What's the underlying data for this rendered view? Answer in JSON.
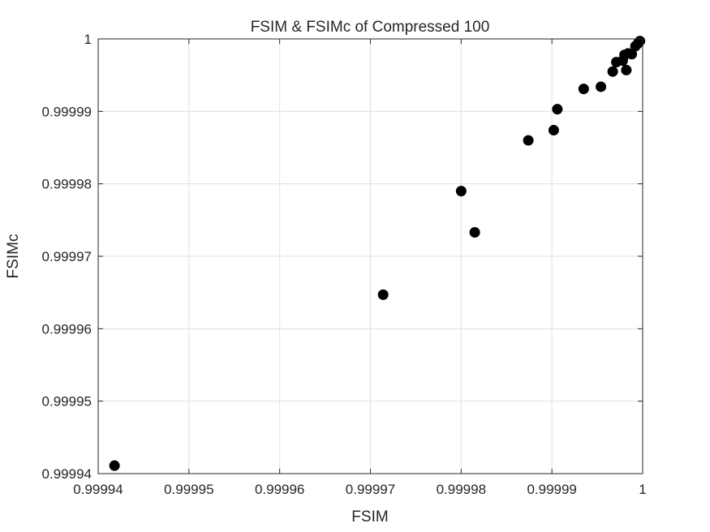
{
  "chart_data": {
    "type": "scatter",
    "title": "FSIM & FSIMc of Compressed 100",
    "xlabel": "FSIM",
    "ylabel": "FSIMc",
    "xlim": [
      0.99994,
      1
    ],
    "ylim": [
      0.99994,
      1
    ],
    "xticks": [
      0.99994,
      0.99995,
      0.99996,
      0.99997,
      0.99998,
      0.99999,
      1
    ],
    "yticks": [
      0.99994,
      0.99995,
      0.99996,
      0.99997,
      0.99998,
      0.99999,
      1
    ],
    "xtick_labels": [
      "0.99994",
      "0.99995",
      "0.99996",
      "0.99997",
      "0.99998",
      "0.99999",
      "1"
    ],
    "ytick_labels": [
      "0.99994",
      "0.99995",
      "0.99996",
      "0.99997",
      "0.99998",
      "0.99999",
      "1"
    ],
    "grid": true,
    "marker_color": "#000000",
    "points": [
      {
        "x": 0.9999418,
        "y": 0.9999411
      },
      {
        "x": 0.9999714,
        "y": 0.9999647
      },
      {
        "x": 0.99998,
        "y": 0.999979
      },
      {
        "x": 0.9999815,
        "y": 0.9999733
      },
      {
        "x": 0.9999874,
        "y": 0.999986
      },
      {
        "x": 0.9999902,
        "y": 0.9999874
      },
      {
        "x": 0.9999906,
        "y": 0.9999903
      },
      {
        "x": 0.9999935,
        "y": 0.9999931
      },
      {
        "x": 0.9999954,
        "y": 0.9999934
      },
      {
        "x": 0.9999967,
        "y": 0.9999955
      },
      {
        "x": 0.9999971,
        "y": 0.9999968
      },
      {
        "x": 0.9999978,
        "y": 0.999997
      },
      {
        "x": 0.999998,
        "y": 0.9999978
      },
      {
        "x": 0.9999982,
        "y": 0.9999957
      },
      {
        "x": 0.9999984,
        "y": 0.999998
      },
      {
        "x": 0.9999988,
        "y": 0.9999979
      },
      {
        "x": 0.9999992,
        "y": 0.999999
      },
      {
        "x": 0.9999995,
        "y": 0.9999994
      },
      {
        "x": 0.9999997,
        "y": 0.9999997
      }
    ]
  }
}
